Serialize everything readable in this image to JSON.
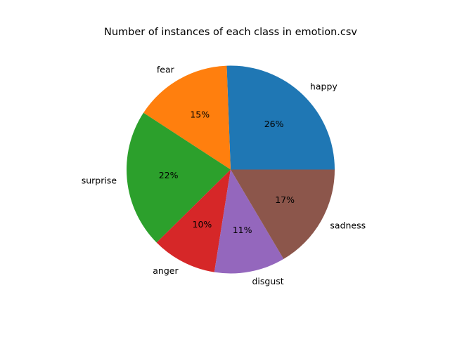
{
  "chart_data": {
    "type": "pie",
    "title": "Number of instances of each class in emotion.csv",
    "labels": [
      "happy",
      "fear",
      "surprise",
      "anger",
      "disgust",
      "sadness"
    ],
    "percent_labels": [
      "26%",
      "15%",
      "22%",
      "10%",
      "11%",
      "17%"
    ],
    "values": [
      25.6,
      15.2,
      21.6,
      10.1,
      11.0,
      16.5
    ],
    "colors": [
      "#1f77b4",
      "#ff7f0e",
      "#2ca02c",
      "#d62728",
      "#9467bd",
      "#8c564b"
    ],
    "start_angle_deg": 0,
    "direction": "counterclockwise",
    "legend": "none"
  }
}
